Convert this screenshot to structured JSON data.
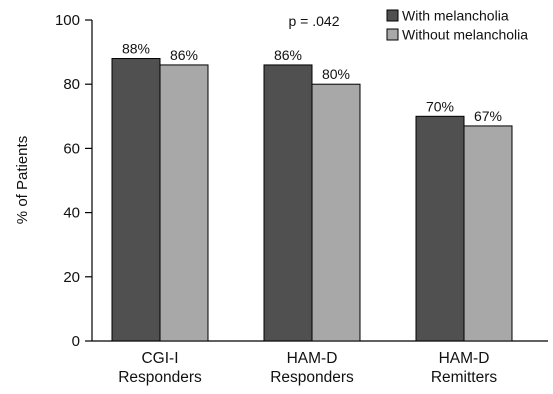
{
  "chart_data": {
    "type": "bar",
    "categories": [
      [
        "CGI-I",
        "Responders"
      ],
      [
        "HAM-D",
        "Responders"
      ],
      [
        "HAM-D",
        "Remitters"
      ]
    ],
    "series": [
      {
        "name": "With melancholia",
        "values": [
          88,
          86,
          70
        ],
        "labels": [
          "88%",
          "86%",
          "70%"
        ],
        "color": "#505050"
      },
      {
        "name": "Without melancholia",
        "values": [
          86,
          80,
          67
        ],
        "labels": [
          "86%",
          "80%",
          "67%"
        ],
        "color": "#a8a8a8"
      }
    ],
    "title": "",
    "xlabel": "",
    "ylabel": "% of Patients",
    "ylim": [
      0,
      100
    ],
    "yticks": [
      0,
      20,
      40,
      60,
      80,
      100
    ],
    "grid": false,
    "legend_position": "top-right",
    "annotations": [
      {
        "text": "p = .042",
        "near_category": 1
      }
    ]
  }
}
